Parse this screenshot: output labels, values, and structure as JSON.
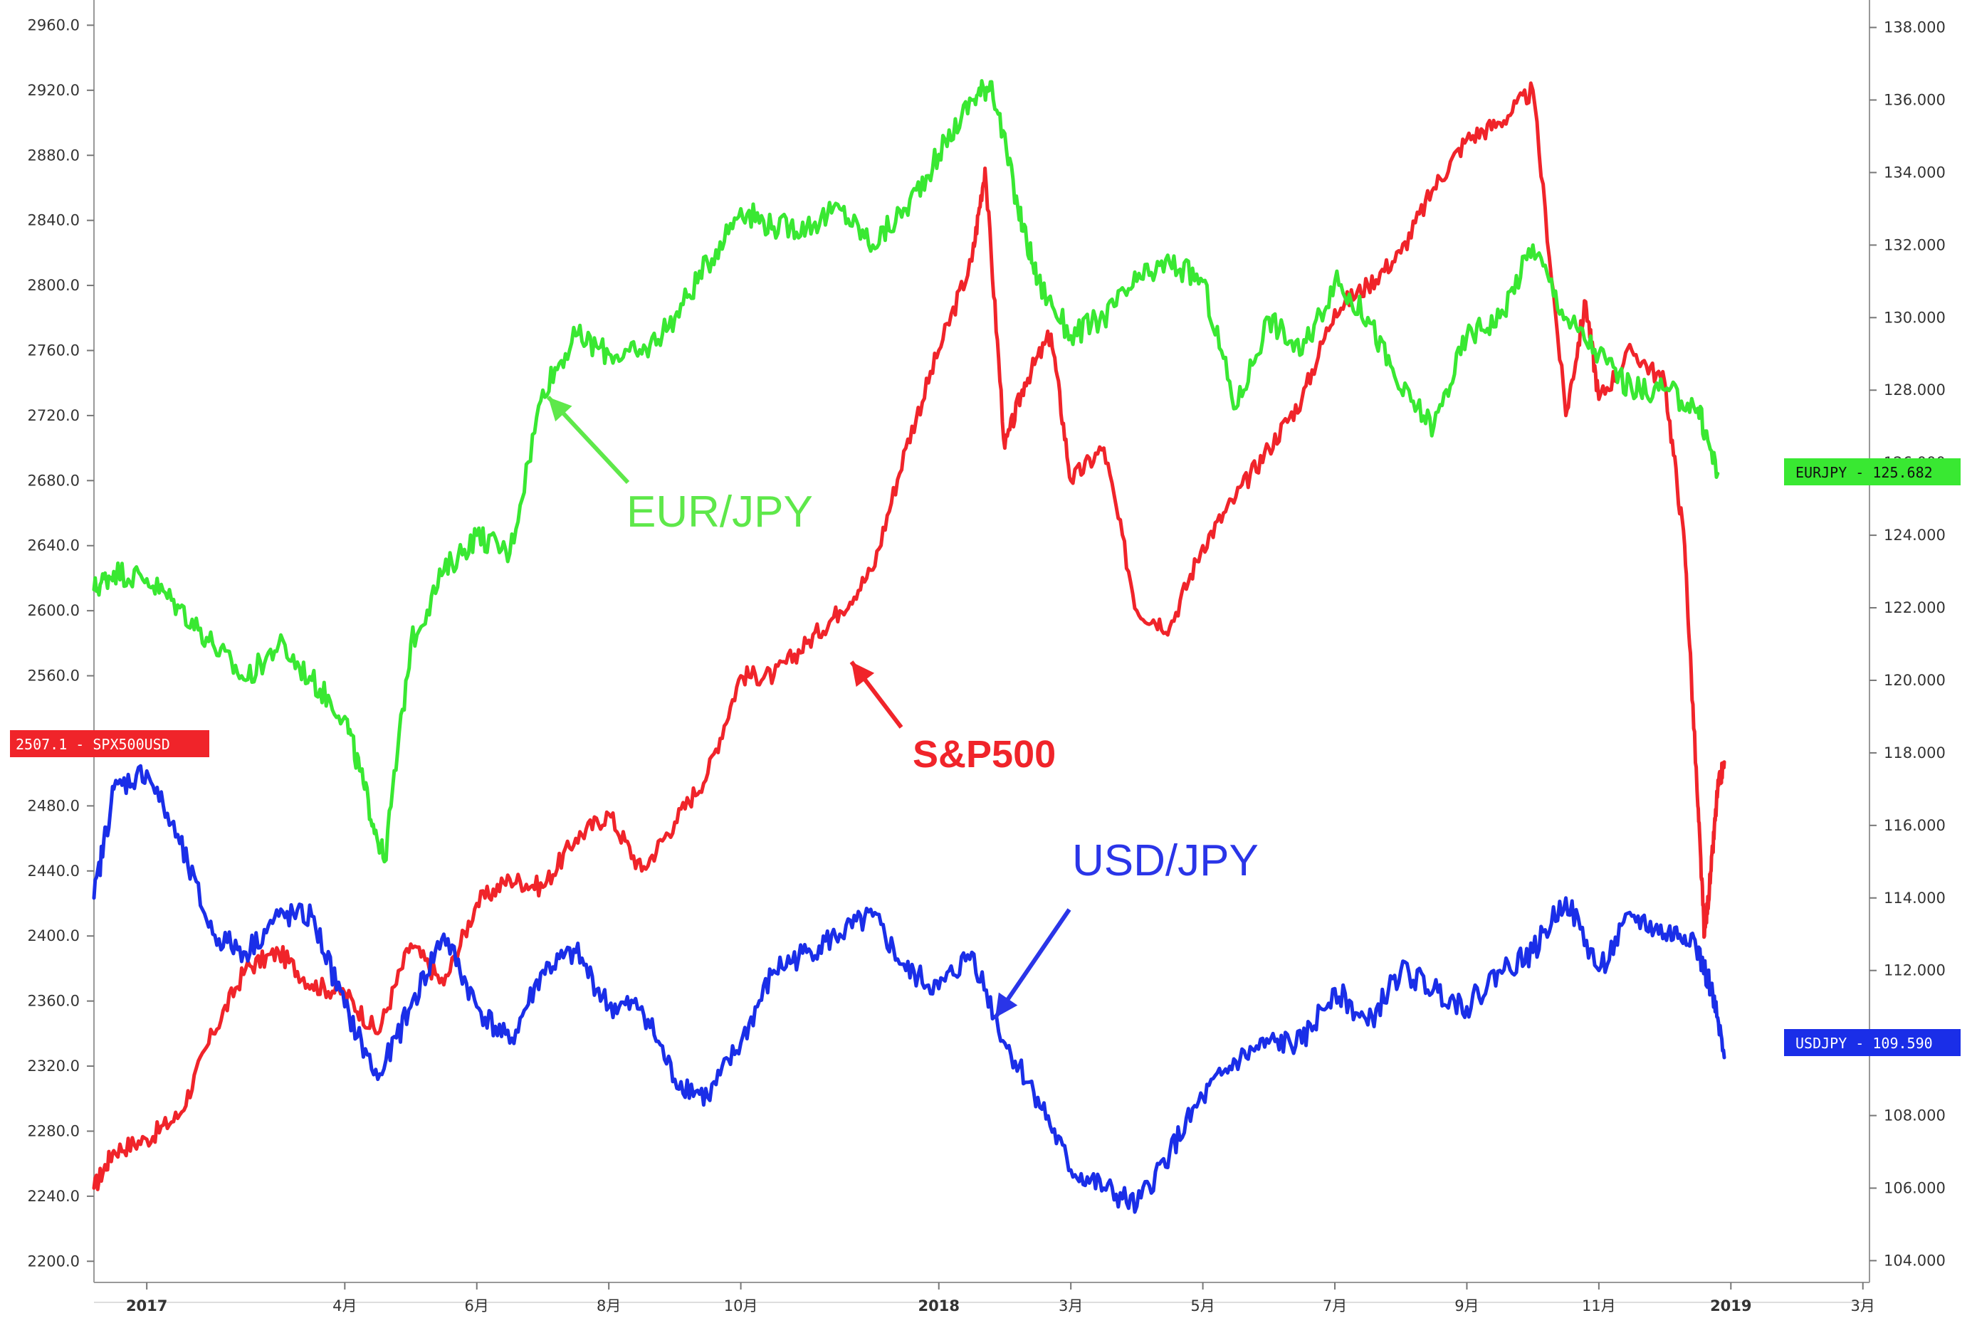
{
  "chart_data": {
    "type": "line",
    "x_ticks": [
      {
        "label": "2017",
        "month": 0,
        "bold": true
      },
      {
        "label": "4月",
        "month": 3,
        "bold": false
      },
      {
        "label": "6月",
        "month": 5,
        "bold": false
      },
      {
        "label": "8月",
        "month": 7,
        "bold": false
      },
      {
        "label": "10月",
        "month": 9,
        "bold": false
      },
      {
        "label": "2018",
        "month": 12,
        "bold": true
      },
      {
        "label": "3月",
        "month": 14,
        "bold": false
      },
      {
        "label": "5月",
        "month": 16,
        "bold": false
      },
      {
        "label": "7月",
        "month": 18,
        "bold": false
      },
      {
        "label": "9月",
        "month": 20,
        "bold": false
      },
      {
        "label": "11月",
        "month": 22,
        "bold": false
      },
      {
        "label": "2019",
        "month": 24,
        "bold": true
      },
      {
        "label": "3月",
        "month": 26,
        "bold": false
      }
    ],
    "xlim": [
      -0.8,
      26.1
    ],
    "left_axis": {
      "ylim": [
        2187,
        2972
      ],
      "ticks": [
        "2200.0",
        "2240.0",
        "2280.0",
        "2320.0",
        "2360.0",
        "2400.0",
        "2440.0",
        "2480.0",
        "2520.0",
        "2560.0",
        "2600.0",
        "2640.0",
        "2680.0",
        "2720.0",
        "2760.0",
        "2800.0",
        "2840.0",
        "2880.0",
        "2920.0",
        "2960.0"
      ]
    },
    "right_axis": {
      "ylim": [
        103.4,
        138.6
      ],
      "ticks": [
        "104.000",
        "106.000",
        "108.000",
        "110.000",
        "112.000",
        "114.000",
        "116.000",
        "118.000",
        "120.000",
        "122.000",
        "124.000",
        "126.000",
        "128.000",
        "130.000",
        "132.000",
        "134.000",
        "136.000",
        "138.000"
      ]
    },
    "series": [
      {
        "name": "S&P500",
        "axis": "left",
        "color": "#f0242a",
        "x": [
          -0.8,
          -0.5,
          0,
          0.5,
          1,
          1.5,
          2,
          2.5,
          3,
          3.5,
          4,
          4.5,
          5,
          5.5,
          6,
          6.5,
          7,
          7.5,
          8,
          8.5,
          9,
          9.5,
          10,
          10.5,
          11,
          11.5,
          12,
          12.5,
          12.7,
          13,
          13.3,
          13.7,
          14,
          14.5,
          15,
          15.5,
          16,
          16.5,
          17,
          17.5,
          18,
          18.5,
          19,
          19.5,
          20,
          20.5,
          21,
          21.5,
          21.8,
          22,
          22.5,
          23,
          23.3,
          23.5,
          23.6,
          23.7,
          23.8,
          23.9
        ],
        "values": [
          2245,
          2268,
          2275,
          2290,
          2340,
          2380,
          2390,
          2370,
          2365,
          2340,
          2395,
          2370,
          2420,
          2435,
          2430,
          2460,
          2475,
          2440,
          2470,
          2500,
          2560,
          2560,
          2580,
          2600,
          2625,
          2700,
          2760,
          2815,
          2872,
          2700,
          2740,
          2770,
          2680,
          2700,
          2600,
          2590,
          2640,
          2670,
          2700,
          2730,
          2785,
          2800,
          2820,
          2860,
          2890,
          2900,
          2920,
          2720,
          2790,
          2730,
          2760,
          2740,
          2640,
          2480,
          2400,
          2440,
          2490,
          2507
        ]
      },
      {
        "name": "EUR/JPY",
        "axis": "right",
        "color": "#39e832",
        "x": [
          -0.8,
          -0.5,
          0,
          0.5,
          1,
          1.5,
          2,
          2.5,
          3,
          3.3,
          3.6,
          4,
          4.5,
          5,
          5.5,
          6,
          6.5,
          7,
          7.5,
          8,
          8.5,
          9,
          9.5,
          10,
          10.5,
          11,
          11.5,
          12,
          12.5,
          12.8,
          13.2,
          13.5,
          14,
          14.5,
          15,
          15.5,
          16,
          16.5,
          17,
          17.5,
          18,
          18.5,
          19,
          19.5,
          20,
          20.5,
          21,
          21.5,
          22,
          22.5,
          23,
          23.5,
          23.8
        ],
        "values": [
          122.5,
          123,
          122.8,
          122,
          121,
          120,
          121,
          120,
          119,
          117,
          115,
          121,
          123,
          124,
          123.5,
          128,
          129.5,
          129,
          129,
          130,
          131.5,
          133,
          132.5,
          132.5,
          133,
          132,
          133,
          134.5,
          136,
          136.5,
          133,
          131,
          129.5,
          130,
          131,
          131.5,
          131,
          127.5,
          130,
          129,
          131,
          130,
          128,
          127,
          129.5,
          130,
          132,
          130,
          129,
          128,
          128,
          127.5,
          125.7
        ]
      },
      {
        "name": "USD/JPY",
        "axis": "right",
        "color": "#1a2ee8",
        "x": [
          -0.8,
          -0.5,
          0,
          0.5,
          1,
          1.5,
          2,
          2.5,
          3,
          3.5,
          4,
          4.5,
          5,
          5.5,
          6,
          6.5,
          7,
          7.5,
          8,
          8.5,
          9,
          9.5,
          10,
          10.5,
          11,
          11.5,
          12,
          12.5,
          13,
          13.5,
          14,
          14.5,
          15,
          15.5,
          16,
          16.5,
          17,
          17.5,
          18,
          18.5,
          19,
          19.5,
          20,
          20.5,
          21,
          21.5,
          22,
          22.5,
          23,
          23.4,
          23.7,
          23.9
        ],
        "values": [
          114,
          117,
          117.5,
          115.5,
          113,
          112.5,
          113.5,
          113.5,
          111,
          109,
          111,
          113,
          111,
          110,
          112,
          112.5,
          111,
          111,
          109,
          108.5,
          110,
          112,
          112.5,
          113,
          113.5,
          112,
          111.5,
          112.5,
          110,
          108.5,
          106.5,
          106,
          105.5,
          107,
          108.5,
          109.5,
          110,
          110,
          111.5,
          110.5,
          112,
          111.5,
          111,
          112,
          112.5,
          114,
          112,
          113.5,
          113,
          113,
          111.5,
          109.6
        ]
      }
    ],
    "annotations": [
      {
        "text": "EUR/JPY",
        "color": "#5ee84a",
        "bold": false
      },
      {
        "text": "S&P500",
        "color": "#f0242a",
        "bold": true
      },
      {
        "text": "USD/JPY",
        "color": "#2a35e8",
        "bold": false
      }
    ],
    "badges": [
      {
        "text": "2507.1 - SPX500USD",
        "color": "#f0242a"
      },
      {
        "text": "EURJPY - 125.682",
        "color": "#39e832"
      },
      {
        "text": "USDJPY - 109.590",
        "color": "#1a2ee8"
      }
    ]
  }
}
